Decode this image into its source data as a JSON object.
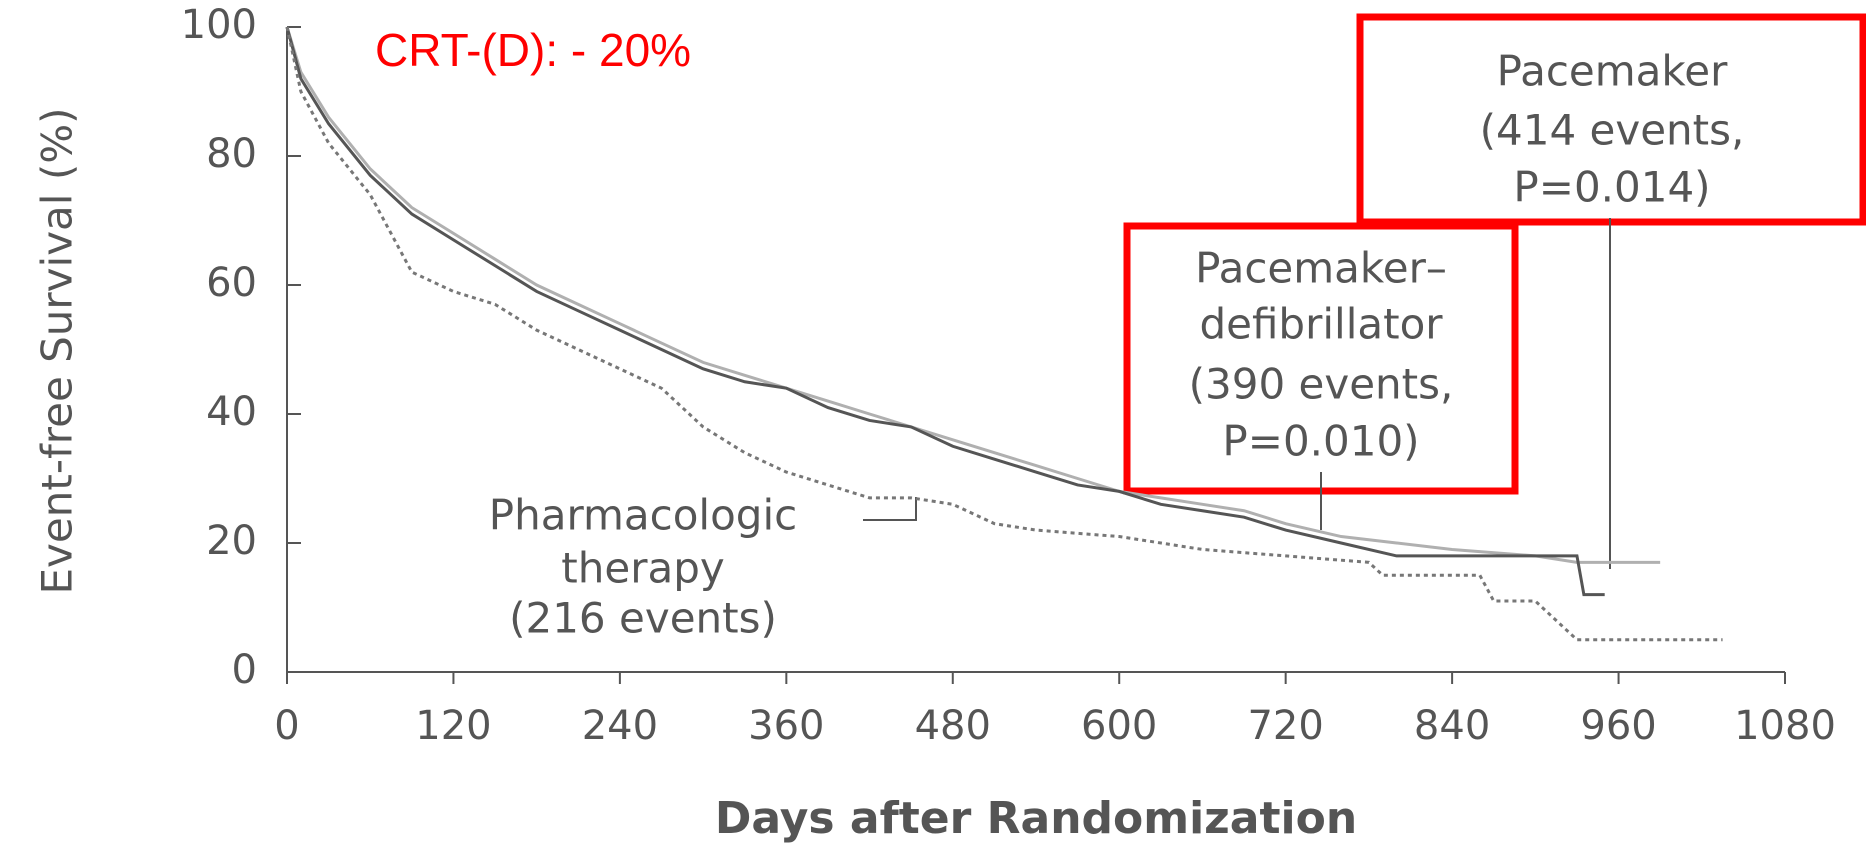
{
  "chart_data": {
    "type": "line",
    "xlabel": "Days after Randomization",
    "ylabel": "Event-free Survival (%)",
    "xlim": [
      0,
      1080
    ],
    "xticks": [
      0,
      120,
      240,
      360,
      480,
      600,
      720,
      840,
      960,
      1080
    ],
    "ylim": [
      0,
      100
    ],
    "yticks": [
      0,
      20,
      40,
      60,
      80,
      100
    ],
    "grid": false,
    "annotations": [
      "CRT-(D): - 20%"
    ],
    "series": [
      {
        "label": [
          "Pacemaker",
          "(414 events,",
          "P=0.014)"
        ],
        "color": "#b0b0b0",
        "x": [
          0,
          10,
          30,
          60,
          90,
          120,
          150,
          180,
          210,
          240,
          270,
          300,
          330,
          360,
          390,
          420,
          450,
          480,
          510,
          540,
          570,
          600,
          630,
          660,
          690,
          720,
          760,
          800,
          840,
          900,
          930,
          960,
          990
        ],
        "values": [
          100,
          93,
          86,
          78,
          72,
          68,
          64,
          60,
          57,
          54,
          51,
          48,
          46,
          44,
          42,
          40,
          38,
          36,
          34,
          32,
          30,
          28,
          27,
          26,
          25,
          23,
          21,
          20,
          19,
          18,
          17,
          17,
          17
        ]
      },
      {
        "label": [
          "Pacemaker–",
          "defibrillator",
          "(390 events,",
          "P=0.010)"
        ],
        "color": "#555555",
        "x": [
          0,
          10,
          30,
          60,
          90,
          120,
          150,
          180,
          210,
          240,
          270,
          300,
          330,
          360,
          390,
          420,
          450,
          480,
          510,
          540,
          570,
          600,
          630,
          660,
          690,
          720,
          760,
          800,
          840,
          900,
          930,
          935,
          950
        ],
        "values": [
          100,
          92,
          85,
          77,
          71,
          67,
          63,
          59,
          56,
          53,
          50,
          47,
          45,
          44,
          41,
          39,
          38,
          35,
          33,
          31,
          29,
          28,
          26,
          25,
          24,
          22,
          20,
          18,
          18,
          18,
          18,
          12,
          12
        ]
      },
      {
        "label": [
          "Pharmacologic",
          "therapy",
          "(216 events)"
        ],
        "color": "#777777",
        "dashed": true,
        "x": [
          0,
          10,
          30,
          60,
          90,
          120,
          150,
          180,
          210,
          240,
          270,
          300,
          330,
          360,
          390,
          420,
          450,
          480,
          510,
          540,
          600,
          660,
          720,
          780,
          790,
          860,
          870,
          900,
          930,
          1035
        ],
        "values": [
          100,
          90,
          82,
          74,
          62,
          59,
          57,
          53,
          50,
          47,
          44,
          38,
          34,
          31,
          29,
          27,
          27,
          26,
          23,
          22,
          21,
          19,
          18,
          17,
          15,
          15,
          11,
          11,
          5,
          5
        ]
      }
    ]
  }
}
